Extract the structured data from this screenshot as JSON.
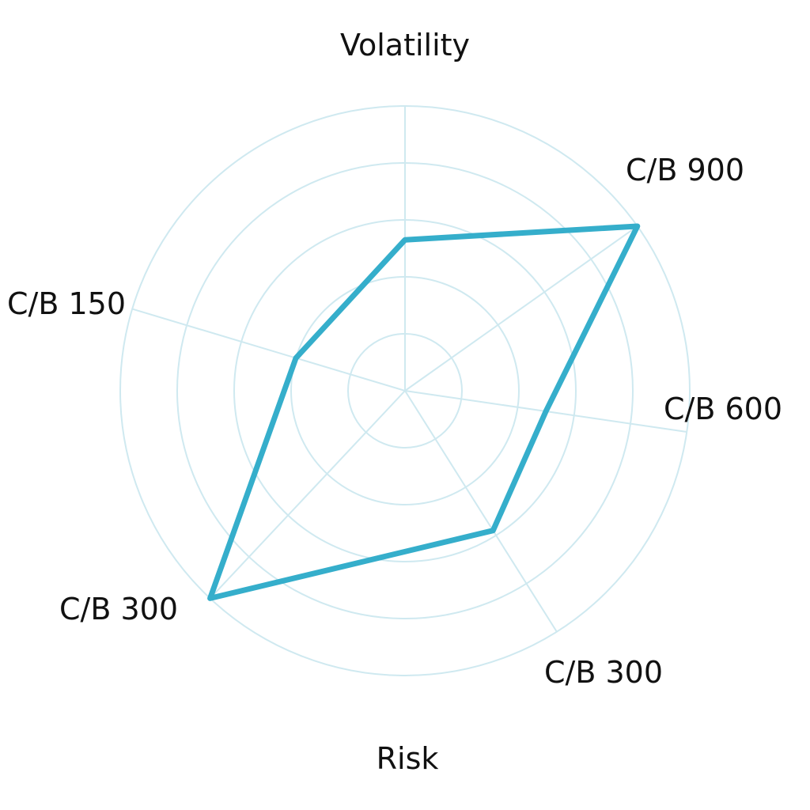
{
  "chart_data": {
    "type": "radar",
    "title": "Volatility",
    "bottom_label": "Risk",
    "axes": [
      "Volatility",
      "C/B 900",
      "C/B 600",
      "C/B 300",
      "C/B 300",
      "C/B 150"
    ],
    "axis_labels": [
      "C/B 900",
      "C/B 600",
      "C/B 300",
      "C/B 300",
      "C/B 150"
    ],
    "rings": 5,
    "grid": true,
    "series": [
      {
        "values": [
          0.53,
          1.0,
          0.5,
          0.58,
          1.0,
          0.4
        ]
      }
    ],
    "colors": {
      "line": "#35aecb",
      "grid": "#cfe9f0",
      "text": "#111111"
    }
  }
}
